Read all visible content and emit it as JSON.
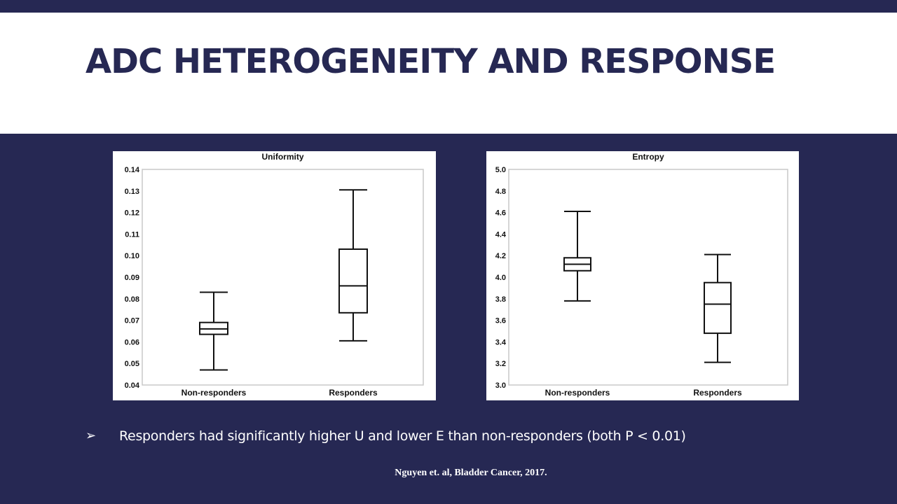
{
  "slide": {
    "title": "ADC HETEROGENEITY AND RESPONSE",
    "bullet_marker": "➢",
    "bullet_text": "Responders had significantly higher U and lower E than non-responders (both P < 0.01)",
    "citation": "Nguyen et. al, Bladder Cancer, 2017."
  },
  "colors": {
    "background": "#262853",
    "title": "#262853",
    "band": "#ffffff"
  },
  "chart_data": [
    {
      "type": "boxplot",
      "title": "Uniformity",
      "categories": [
        "Non-responders",
        "Responders"
      ],
      "ylim": [
        0.04,
        0.14
      ],
      "yticks": [
        0.04,
        0.05,
        0.06,
        0.07,
        0.08,
        0.09,
        0.1,
        0.11,
        0.12,
        0.13,
        0.14
      ],
      "ytick_labels": [
        "0.04",
        "0.05",
        "0.06",
        "0.07",
        "0.08",
        "0.09",
        "0.10",
        "0.11",
        "0.12",
        "0.13",
        "0.14"
      ],
      "boxes": [
        {
          "min": 0.047,
          "q1": 0.0635,
          "median": 0.066,
          "q3": 0.069,
          "max": 0.083
        },
        {
          "min": 0.0605,
          "q1": 0.0735,
          "median": 0.086,
          "q3": 0.103,
          "max": 0.1305
        }
      ],
      "xlabel": "",
      "ylabel": ""
    },
    {
      "type": "boxplot",
      "title": "Entropy",
      "categories": [
        "Non-responders",
        "Responders"
      ],
      "ylim": [
        3.0,
        5.0
      ],
      "yticks": [
        3.0,
        3.2,
        3.4,
        3.6,
        3.8,
        4.0,
        4.2,
        4.4,
        4.6,
        4.8,
        5.0
      ],
      "ytick_labels": [
        "3.0",
        "3.2",
        "3.4",
        "3.6",
        "3.8",
        "4.0",
        "4.2",
        "4.4",
        "4.6",
        "4.8",
        "5.0"
      ],
      "boxes": [
        {
          "min": 3.78,
          "q1": 4.06,
          "median": 4.12,
          "q3": 4.18,
          "max": 4.61
        },
        {
          "min": 3.21,
          "q1": 3.48,
          "median": 3.75,
          "q3": 3.95,
          "max": 4.21
        }
      ],
      "xlabel": "",
      "ylabel": ""
    }
  ]
}
